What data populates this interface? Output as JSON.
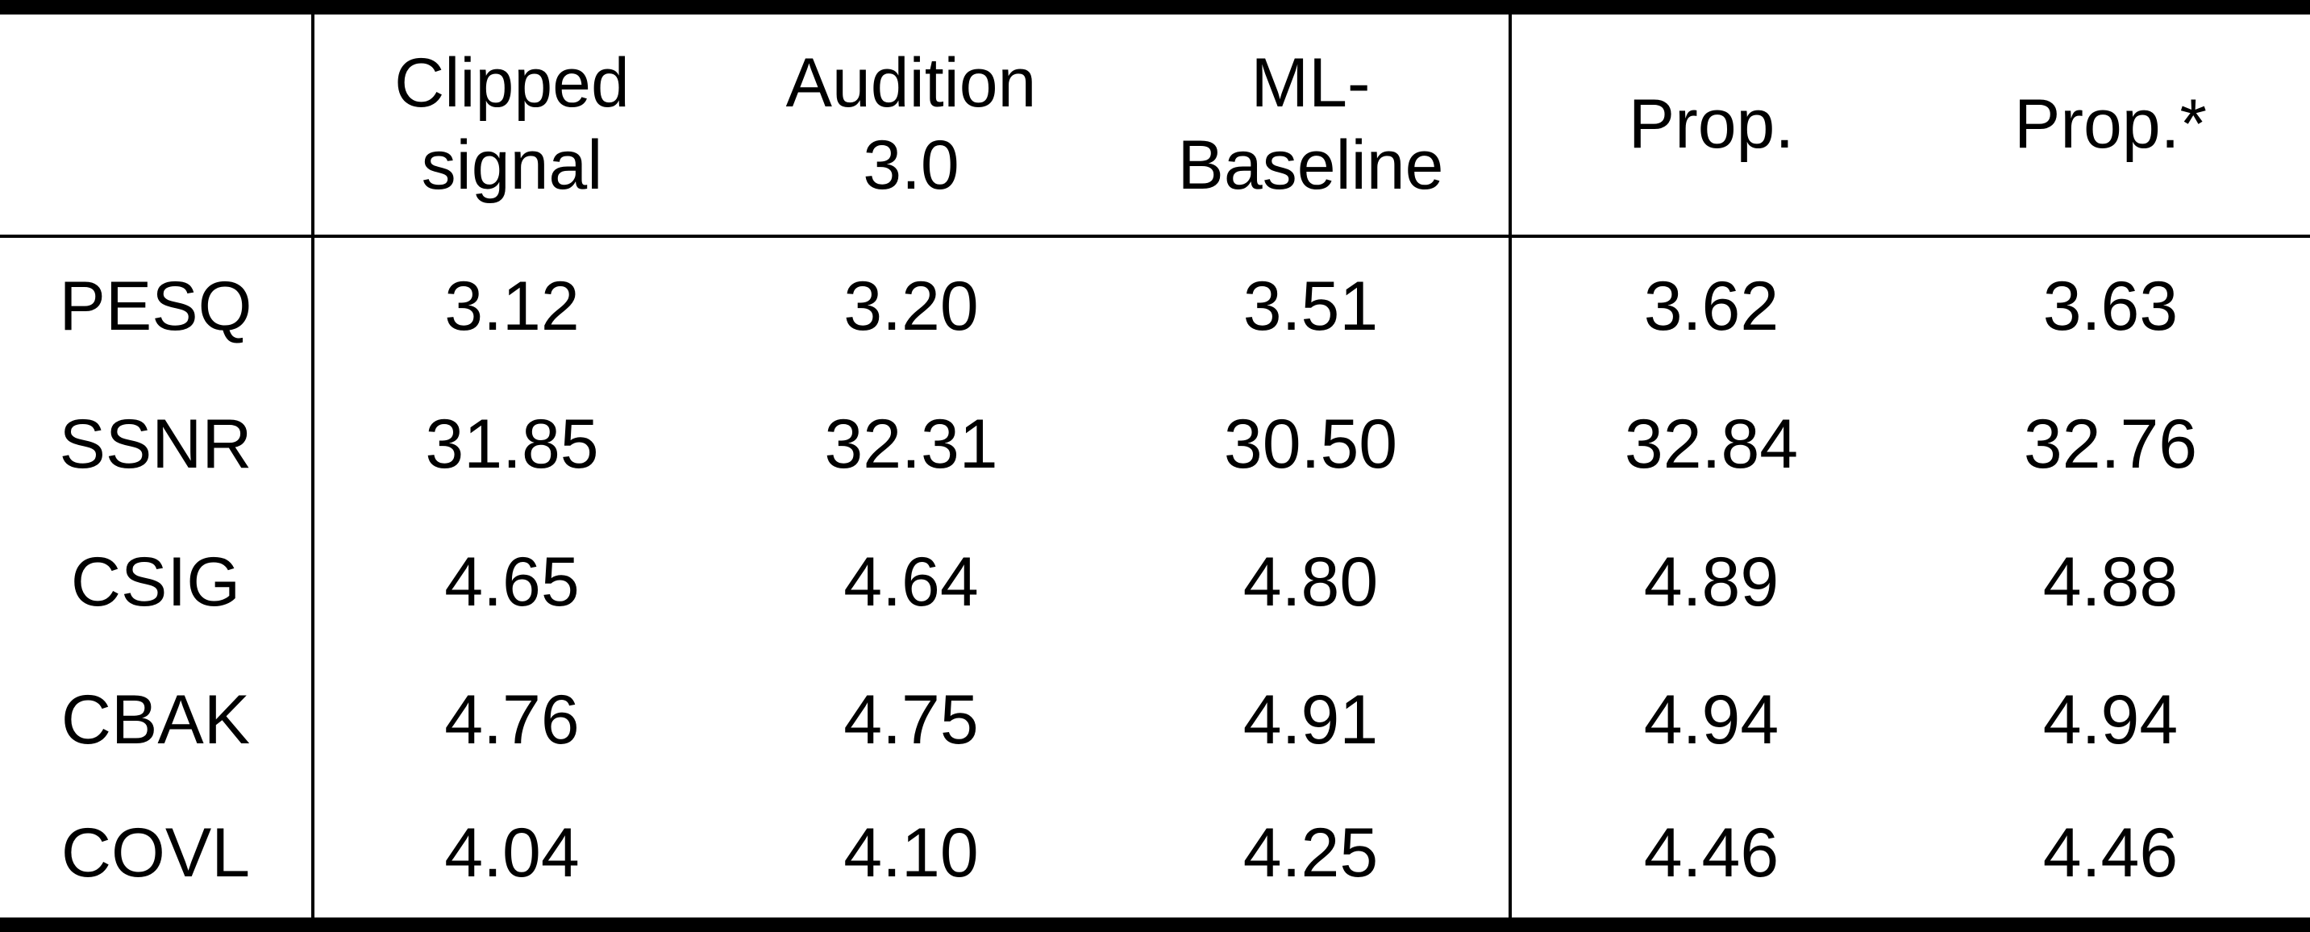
{
  "table": {
    "headers": [
      "",
      "Clipped\nsignal",
      "Audition\n3.0",
      "ML-\nBaseline",
      "Prop.",
      "Prop.*"
    ],
    "rows": [
      {
        "metric": "PESQ",
        "values": [
          "3.12",
          "3.20",
          "3.51",
          "3.62",
          "3.63"
        ]
      },
      {
        "metric": "SSNR",
        "values": [
          "31.85",
          "32.31",
          "30.50",
          "32.84",
          "32.76"
        ]
      },
      {
        "metric": "CSIG",
        "values": [
          "4.65",
          "4.64",
          "4.80",
          "4.89",
          "4.88"
        ]
      },
      {
        "metric": "CBAK",
        "values": [
          "4.76",
          "4.75",
          "4.91",
          "4.94",
          "4.94"
        ]
      },
      {
        "metric": "COVL",
        "values": [
          "4.04",
          "4.10",
          "4.25",
          "4.46",
          "4.46"
        ]
      }
    ]
  }
}
